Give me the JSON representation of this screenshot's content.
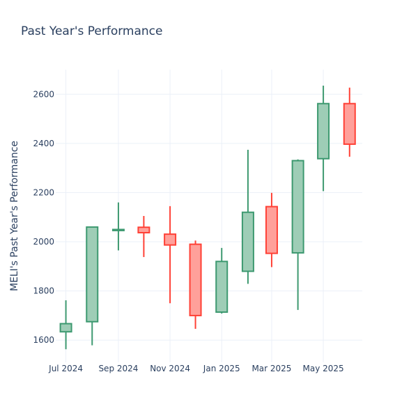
{
  "chart_data": {
    "type": "candlestick",
    "title": "Past Year's Performance",
    "xlabel": "",
    "ylabel": "MELI's Past Year's Performance",
    "ylim": [
      1510,
      2700
    ],
    "yticks": [
      1600,
      1800,
      2000,
      2200,
      2400,
      2600
    ],
    "xlim": [
      "2024-06-19",
      "2025-06-16"
    ],
    "xticks": [
      {
        "date": "2024-07-01",
        "label": "Jul 2024"
      },
      {
        "date": "2024-09-01",
        "label": "Sep 2024"
      },
      {
        "date": "2024-11-01",
        "label": "Nov 2024"
      },
      {
        "date": "2025-01-01",
        "label": "Jan 2025"
      },
      {
        "date": "2025-03-01",
        "label": "Mar 2025"
      },
      {
        "date": "2025-05-01",
        "label": "May 2025"
      }
    ],
    "grid": true,
    "increasing_color": "#3d9970",
    "increasing_fill": "#9ecdb6",
    "decreasing_color": "#ff4136",
    "decreasing_fill": "#ffa09a",
    "candles": [
      {
        "date": "2024-07-01",
        "open": 1634,
        "high": 1762,
        "low": 1563,
        "close": 1667
      },
      {
        "date": "2024-08-01",
        "open": 1675,
        "high": 2061,
        "low": 1579,
        "close": 2060
      },
      {
        "date": "2024-09-01",
        "open": 2048,
        "high": 2160,
        "low": 1965,
        "close": 2050
      },
      {
        "date": "2024-10-01",
        "open": 2059,
        "high": 2105,
        "low": 1938,
        "close": 2037
      },
      {
        "date": "2024-11-01",
        "open": 2031,
        "high": 2145,
        "low": 1750,
        "close": 1987
      },
      {
        "date": "2024-12-01",
        "open": 1990,
        "high": 2005,
        "low": 1646,
        "close": 1700
      },
      {
        "date": "2025-01-01",
        "open": 1714,
        "high": 1975,
        "low": 1708,
        "close": 1920
      },
      {
        "date": "2025-02-01",
        "open": 1880,
        "high": 2374,
        "low": 1829,
        "close": 2120
      },
      {
        "date": "2025-03-01",
        "open": 2143,
        "high": 2199,
        "low": 1897,
        "close": 1953
      },
      {
        "date": "2025-04-01",
        "open": 1955,
        "high": 2335,
        "low": 1723,
        "close": 2330
      },
      {
        "date": "2025-05-01",
        "open": 2338,
        "high": 2635,
        "low": 2206,
        "close": 2562
      },
      {
        "date": "2025-06-01",
        "open": 2562,
        "high": 2627,
        "low": 2346,
        "close": 2397
      }
    ]
  }
}
